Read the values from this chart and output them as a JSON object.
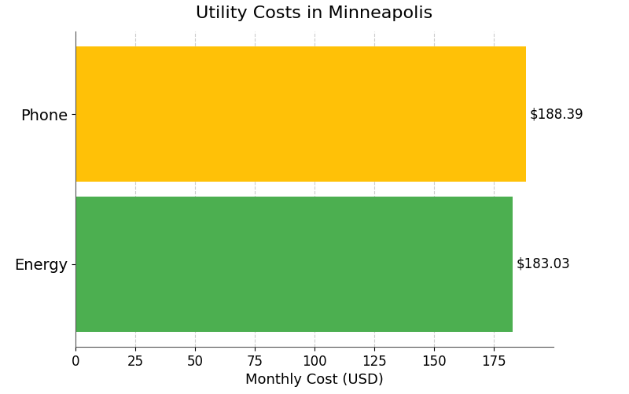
{
  "title": "Utility Costs in Minneapolis",
  "categories": [
    "Energy",
    "Phone"
  ],
  "values": [
    183.03,
    188.39
  ],
  "bar_colors": [
    "#4CAF50",
    "#FFC107"
  ],
  "xlabel": "Monthly Cost (USD)",
  "xlim": [
    0,
    200
  ],
  "xticks": [
    0,
    25,
    50,
    75,
    100,
    125,
    150,
    175
  ],
  "value_labels": [
    "$183.03",
    "$188.39"
  ],
  "background_color": "#ffffff",
  "title_fontsize": 16,
  "label_fontsize": 13,
  "tick_fontsize": 12,
  "annotation_fontsize": 12,
  "grid_color": "#cccccc",
  "grid_linestyle": "--",
  "bar_height": 0.9
}
